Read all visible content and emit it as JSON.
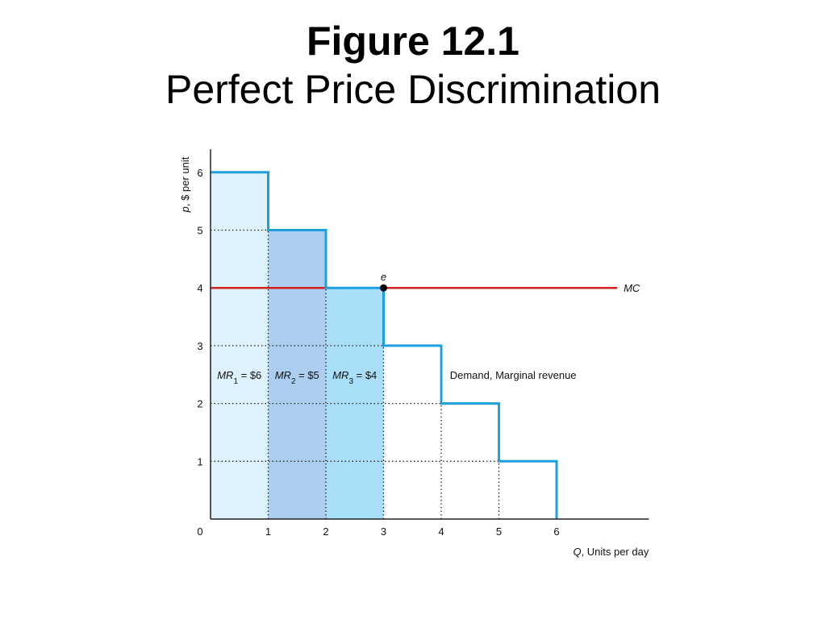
{
  "figure": {
    "title": "Figure 12.1",
    "subtitle": "Perfect Price Discrimination"
  },
  "chart_data": {
    "type": "line",
    "xlabel": {
      "var": "Q",
      "text": ", Units per day"
    },
    "ylabel": {
      "var": "p",
      "text": ", $ per unit"
    },
    "xlim": [
      0,
      7.6
    ],
    "ylim": [
      0,
      6.4
    ],
    "xticks": [
      0,
      1,
      2,
      3,
      4,
      5,
      6
    ],
    "yticks": [
      1,
      2,
      3,
      4,
      5,
      6
    ],
    "demand_steps": [
      {
        "q_from": 0,
        "q_to": 1,
        "price": 6
      },
      {
        "q_from": 1,
        "q_to": 2,
        "price": 5
      },
      {
        "q_from": 2,
        "q_to": 3,
        "price": 4
      },
      {
        "q_from": 3,
        "q_to": 4,
        "price": 3
      },
      {
        "q_from": 4,
        "q_to": 5,
        "price": 2
      },
      {
        "q_from": 5,
        "q_to": 6,
        "price": 1
      }
    ],
    "mc": {
      "value": 4,
      "label": "MC",
      "color": "#d42020"
    },
    "equilibrium": {
      "q": 3,
      "p": 4,
      "label": "e"
    },
    "shaded_units": [
      {
        "q_from": 0,
        "q_to": 1,
        "price": 6,
        "color": "#ddf2fc"
      },
      {
        "q_from": 1,
        "q_to": 2,
        "price": 5,
        "color": "#abcdf0"
      },
      {
        "q_from": 2,
        "q_to": 3,
        "price": 4,
        "color": "#a8def8"
      }
    ],
    "mr_labels": [
      {
        "var": "MR",
        "sub": "1",
        "text": " = $6",
        "q": 0.5
      },
      {
        "var": "MR",
        "sub": "2",
        "text": " = $5",
        "q": 1.5
      },
      {
        "var": "MR",
        "sub": "3",
        "text": " = $4",
        "q": 2.5
      }
    ],
    "mr_label_y": 2.5,
    "demand_label": "Demand, Marginal revenue",
    "demand_color": "#1ea0e0",
    "grid": false
  }
}
